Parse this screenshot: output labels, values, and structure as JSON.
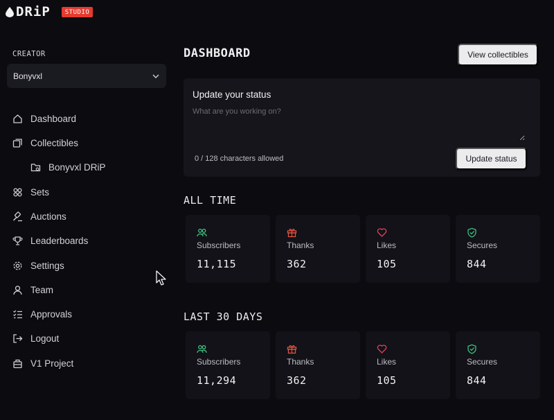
{
  "brand": {
    "logo_text": "DRiP",
    "badge": "STUDIO",
    "accent": "#e53b2f"
  },
  "sidebar": {
    "creator_label": "CREATOR",
    "creator_selected": "Bonyvxl",
    "items": [
      {
        "label": "Dashboard",
        "icon": "home-icon"
      },
      {
        "label": "Collectibles",
        "icon": "collectibles-icon"
      },
      {
        "label": "Bonyvxl DRiP",
        "icon": "folder-icon"
      },
      {
        "label": "Sets",
        "icon": "sets-icon"
      },
      {
        "label": "Auctions",
        "icon": "gavel-icon"
      },
      {
        "label": "Leaderboards",
        "icon": "trophy-icon"
      },
      {
        "label": "Settings",
        "icon": "gear-icon"
      },
      {
        "label": "Team",
        "icon": "user-icon"
      },
      {
        "label": "Approvals",
        "icon": "checklist-icon"
      },
      {
        "label": "Logout",
        "icon": "logout-icon"
      },
      {
        "label": "V1 Project",
        "icon": "briefcase-icon"
      }
    ]
  },
  "main": {
    "title": "DASHBOARD",
    "view_collectibles": "View collectibles",
    "status": {
      "title": "Update your status",
      "placeholder": "What are you working on?",
      "char_count": "0 / 128 characters allowed",
      "button": "Update status"
    },
    "all_time": {
      "title": "ALL TIME",
      "stats": [
        {
          "label": "Subscribers",
          "value": "11,115",
          "icon": "subscribers-icon",
          "color": "#3fbf7f"
        },
        {
          "label": "Thanks",
          "value": "362",
          "icon": "gift-icon",
          "color": "#e5533f"
        },
        {
          "label": "Likes",
          "value": "105",
          "icon": "heart-icon",
          "color": "#e5405a"
        },
        {
          "label": "Secures",
          "value": "844",
          "icon": "shield-check-icon",
          "color": "#3fbf7f"
        }
      ]
    },
    "last_30_days": {
      "title": "LAST 30 DAYS",
      "stats": [
        {
          "label": "Subscribers",
          "value": "11,294",
          "icon": "subscribers-icon",
          "color": "#3fbf7f"
        },
        {
          "label": "Thanks",
          "value": "362",
          "icon": "gift-icon",
          "color": "#e5533f"
        },
        {
          "label": "Likes",
          "value": "105",
          "icon": "heart-icon",
          "color": "#e5405a"
        },
        {
          "label": "Secures",
          "value": "844",
          "icon": "shield-check-icon",
          "color": "#3fbf7f"
        }
      ]
    }
  }
}
